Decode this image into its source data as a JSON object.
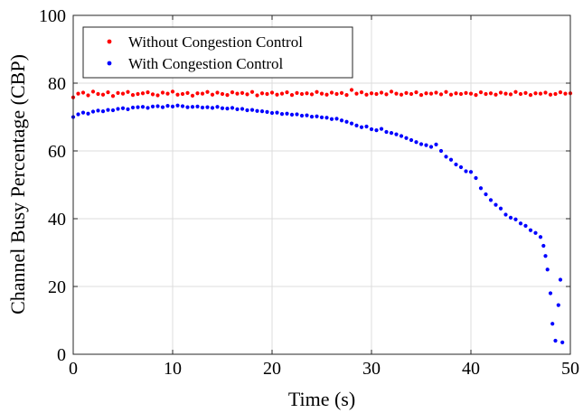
{
  "chart_data": {
    "type": "scatter",
    "xlabel": "Time (s)",
    "ylabel": "Channel Busy Percentage (CBP)",
    "xlim": [
      0,
      50
    ],
    "ylim": [
      0,
      100
    ],
    "xticks": [
      0,
      10,
      20,
      30,
      40,
      50
    ],
    "yticks": [
      0,
      20,
      40,
      60,
      80,
      100
    ],
    "grid": true,
    "legend_position": "top-left",
    "series": [
      {
        "name": "Without Congestion Control",
        "color": "#ff0000",
        "x": [
          0.0,
          0.5,
          1.0,
          1.5,
          2.0,
          2.5,
          3.0,
          3.5,
          4.0,
          4.5,
          5.0,
          5.5,
          6.0,
          6.5,
          7.0,
          7.5,
          8.0,
          8.5,
          9.0,
          9.5,
          10.0,
          10.5,
          11.0,
          11.5,
          12.0,
          12.5,
          13.0,
          13.5,
          14.0,
          14.5,
          15.0,
          15.5,
          16.0,
          16.5,
          17.0,
          17.5,
          18.0,
          18.5,
          19.0,
          19.5,
          20.0,
          20.5,
          21.0,
          21.5,
          22.0,
          22.5,
          23.0,
          23.5,
          24.0,
          24.5,
          25.0,
          25.5,
          26.0,
          26.5,
          27.0,
          27.5,
          28.0,
          28.5,
          29.0,
          29.5,
          30.0,
          30.5,
          31.0,
          31.5,
          32.0,
          32.5,
          33.0,
          33.5,
          34.0,
          34.5,
          35.0,
          35.5,
          36.0,
          36.5,
          37.0,
          37.5,
          38.0,
          38.5,
          39.0,
          39.5,
          40.0,
          40.5,
          41.0,
          41.5,
          42.0,
          42.5,
          43.0,
          43.5,
          44.0,
          44.5,
          45.0,
          45.5,
          46.0,
          46.5,
          47.0,
          47.5,
          48.0,
          48.5,
          49.0,
          49.5,
          50.0
        ],
        "y": [
          75.8,
          76.9,
          77.2,
          76.4,
          77.5,
          76.8,
          76.6,
          77.3,
          76.2,
          77.1,
          76.9,
          77.4,
          76.5,
          76.8,
          77.0,
          77.3,
          76.7,
          76.4,
          77.2,
          76.9,
          77.5,
          76.6,
          76.8,
          77.1,
          76.3,
          77.0,
          76.9,
          77.4,
          76.6,
          77.2,
          76.8,
          76.5,
          77.3,
          76.9,
          77.1,
          76.7,
          77.4,
          76.4,
          77.0,
          76.8,
          77.2,
          76.6,
          76.9,
          77.3,
          76.5,
          77.1,
          76.8,
          77.0,
          76.7,
          77.4,
          76.9,
          76.6,
          77.2,
          76.8,
          77.1,
          76.5,
          78.0,
          76.9,
          77.3,
          76.6,
          77.0,
          76.8,
          77.2,
          76.7,
          77.5,
          76.9,
          76.6,
          77.1,
          76.8,
          77.3,
          76.5,
          77.0,
          76.9,
          77.2,
          76.7,
          77.4,
          76.6,
          77.0,
          76.8,
          77.1,
          76.9,
          76.5,
          77.3,
          76.8,
          77.0,
          76.6,
          77.2,
          76.9,
          76.7,
          77.4,
          76.8,
          77.1,
          76.5,
          77.0,
          76.9,
          77.2,
          76.6,
          76.8,
          77.3,
          76.9,
          77.0
        ]
      },
      {
        "name": "With Congestion Control",
        "color": "#0000ff",
        "x": [
          0.0,
          0.5,
          1.0,
          1.5,
          2.0,
          2.5,
          3.0,
          3.5,
          4.0,
          4.5,
          5.0,
          5.5,
          6.0,
          6.5,
          7.0,
          7.5,
          8.0,
          8.5,
          9.0,
          9.5,
          10.0,
          10.5,
          11.0,
          11.5,
          12.0,
          12.5,
          13.0,
          13.5,
          14.0,
          14.5,
          15.0,
          15.5,
          16.0,
          16.5,
          17.0,
          17.5,
          18.0,
          18.5,
          19.0,
          19.5,
          20.0,
          20.5,
          21.0,
          21.5,
          22.0,
          22.5,
          23.0,
          23.5,
          24.0,
          24.5,
          25.0,
          25.5,
          26.0,
          26.5,
          27.0,
          27.5,
          28.0,
          28.5,
          29.0,
          29.5,
          30.0,
          30.5,
          31.0,
          31.5,
          32.0,
          32.5,
          33.0,
          33.5,
          34.0,
          34.5,
          35.0,
          35.5,
          36.0,
          36.5,
          37.0,
          37.5,
          38.0,
          38.5,
          39.0,
          39.5,
          40.0,
          40.5,
          41.0,
          41.5,
          42.0,
          42.5,
          43.0,
          43.5,
          44.0,
          44.5,
          45.0,
          45.5,
          46.0,
          46.5,
          47.0,
          47.3,
          47.5,
          47.7,
          48.0,
          48.2,
          48.5,
          48.8,
          49.0,
          49.2
        ],
        "y": [
          70.0,
          70.8,
          71.3,
          71.0,
          71.6,
          71.9,
          71.7,
          72.1,
          72.0,
          72.4,
          72.6,
          72.3,
          72.8,
          72.9,
          73.0,
          72.7,
          73.1,
          73.2,
          72.9,
          73.3,
          73.1,
          73.4,
          73.2,
          72.9,
          73.0,
          73.1,
          72.8,
          72.9,
          72.7,
          73.0,
          72.6,
          72.5,
          72.7,
          72.3,
          72.4,
          72.0,
          72.1,
          71.8,
          71.7,
          71.5,
          71.2,
          71.3,
          70.9,
          71.0,
          70.7,
          70.8,
          70.4,
          70.5,
          70.1,
          70.2,
          69.9,
          69.8,
          69.4,
          69.5,
          69.0,
          68.6,
          68.1,
          67.5,
          67.0,
          67.2,
          66.4,
          66.1,
          66.5,
          65.6,
          65.3,
          64.9,
          64.4,
          63.8,
          63.2,
          62.6,
          62.0,
          61.7,
          61.2,
          61.9,
          60.0,
          58.3,
          57.4,
          56.0,
          55.2,
          54.0,
          53.8,
          52.0,
          49.0,
          47.2,
          45.5,
          44.1,
          43.0,
          41.2,
          40.3,
          39.8,
          38.6,
          37.9,
          36.6,
          35.8,
          34.6,
          32.0,
          29.0,
          25.0,
          18.0,
          9.0,
          4.0,
          14.5,
          22.0,
          3.5
        ]
      }
    ]
  }
}
